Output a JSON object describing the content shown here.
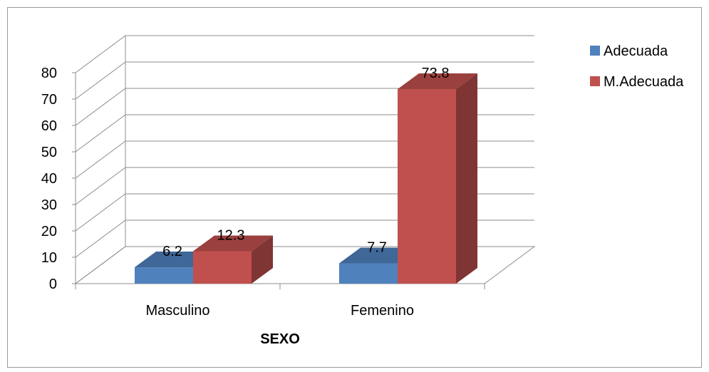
{
  "chart_data": {
    "type": "bar",
    "title": "",
    "xlabel": "SEXO",
    "ylabel": "",
    "ylim": [
      0,
      80
    ],
    "yticks": [
      0,
      10,
      20,
      30,
      40,
      50,
      60,
      70,
      80
    ],
    "categories": [
      "Masculino",
      "Femenino"
    ],
    "series": [
      {
        "name": "Adecuada",
        "values": [
          6.2,
          7.7
        ],
        "color": "#4F81BD"
      },
      {
        "name": "M.Adecuada",
        "values": [
          12.3,
          73.8
        ],
        "color": "#C0504D"
      }
    ],
    "data_labels": true,
    "grid": true,
    "legend_position": "top-right",
    "three_d": true
  }
}
